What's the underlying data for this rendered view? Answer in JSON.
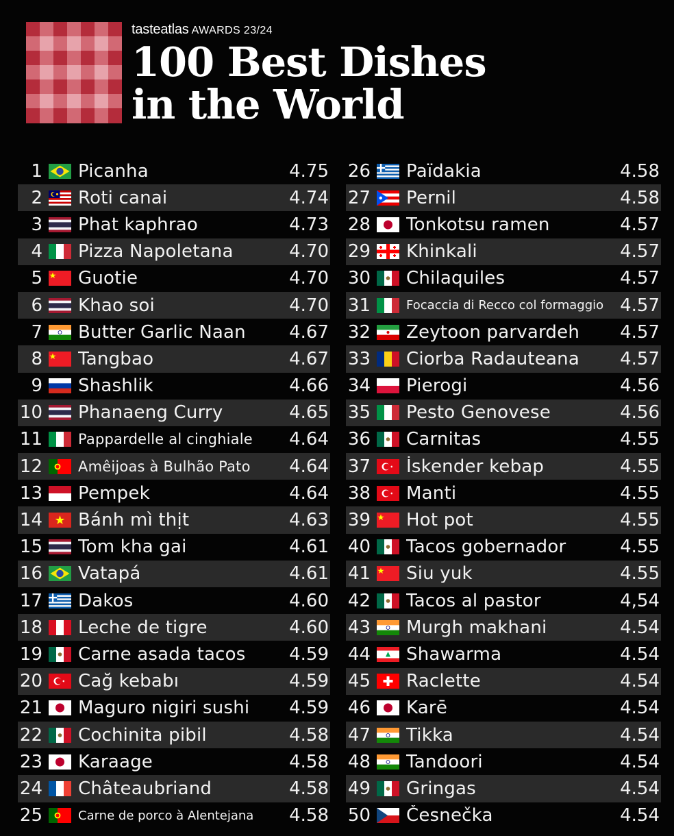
{
  "header": {
    "brand": "tasteatlas",
    "awards": "AWARDS 23/24",
    "title_line1": "100 Best Dishes",
    "title_line2": "in the World"
  },
  "dishes": [
    {
      "rank": "1",
      "flag": "brazil-flag",
      "name": "Picanha",
      "rating": "4.75"
    },
    {
      "rank": "2",
      "flag": "malaysia-flag",
      "name": "Roti canai",
      "rating": "4.74"
    },
    {
      "rank": "3",
      "flag": "thailand-flag",
      "name": "Phat kaphrao",
      "rating": "4.73"
    },
    {
      "rank": "4",
      "flag": "italy-flag",
      "name": "Pizza Napoletana",
      "rating": "4.70"
    },
    {
      "rank": "5",
      "flag": "china-flag",
      "name": "Guotie",
      "rating": "4.70"
    },
    {
      "rank": "6",
      "flag": "thailand-flag",
      "name": "Khao soi",
      "rating": "4.70"
    },
    {
      "rank": "7",
      "flag": "india-flag",
      "name": "Butter Garlic Naan",
      "rating": "4.67"
    },
    {
      "rank": "8",
      "flag": "china-flag",
      "name": "Tangbao",
      "rating": "4.67"
    },
    {
      "rank": "9",
      "flag": "russia-flag",
      "name": "Shashlik",
      "rating": "4.66"
    },
    {
      "rank": "10",
      "flag": "thailand-flag",
      "name": "Phanaeng Curry",
      "rating": "4.65"
    },
    {
      "rank": "11",
      "flag": "italy-flag",
      "name": "Pappardelle al cinghiale",
      "rating": "4.64"
    },
    {
      "rank": "12",
      "flag": "portugal-flag",
      "name": "Amêijoas à Bulhão Pato",
      "rating": "4.64"
    },
    {
      "rank": "13",
      "flag": "indonesia-flag",
      "name": "Pempek",
      "rating": "4.64"
    },
    {
      "rank": "14",
      "flag": "vietnam-flag",
      "name": "Bánh mì thịt",
      "rating": "4.63"
    },
    {
      "rank": "15",
      "flag": "thailand-flag",
      "name": "Tom kha gai",
      "rating": "4.61"
    },
    {
      "rank": "16",
      "flag": "brazil-flag",
      "name": "Vatapá",
      "rating": "4.61"
    },
    {
      "rank": "17",
      "flag": "greece-flag",
      "name": "Dakos",
      "rating": "4.60"
    },
    {
      "rank": "18",
      "flag": "peru-flag",
      "name": "Leche de tigre",
      "rating": "4.60"
    },
    {
      "rank": "19",
      "flag": "mexico-flag",
      "name": "Carne asada tacos",
      "rating": "4.59"
    },
    {
      "rank": "20",
      "flag": "turkey-flag",
      "name": "Cağ kebabı",
      "rating": "4.59"
    },
    {
      "rank": "21",
      "flag": "japan-flag",
      "name": "Maguro nigiri sushi",
      "rating": "4.59"
    },
    {
      "rank": "22",
      "flag": "mexico-flag",
      "name": "Cochinita pibil",
      "rating": "4.58"
    },
    {
      "rank": "23",
      "flag": "japan-flag",
      "name": "Karaage",
      "rating": "4.58"
    },
    {
      "rank": "24",
      "flag": "france-flag",
      "name": "Châteaubriand",
      "rating": "4.58"
    },
    {
      "rank": "25",
      "flag": "portugal-flag",
      "name": "Carne de porco à Alentejana",
      "rating": "4.58"
    },
    {
      "rank": "26",
      "flag": "greece-flag",
      "name": "Païdakia",
      "rating": "4.58"
    },
    {
      "rank": "27",
      "flag": "puerto-rico-flag",
      "name": "Pernil",
      "rating": "4.58"
    },
    {
      "rank": "28",
      "flag": "japan-flag",
      "name": "Tonkotsu ramen",
      "rating": "4.57"
    },
    {
      "rank": "29",
      "flag": "georgia-flag",
      "name": "Khinkali",
      "rating": "4.57"
    },
    {
      "rank": "30",
      "flag": "mexico-flag",
      "name": "Chilaquiles",
      "rating": "4.57"
    },
    {
      "rank": "31",
      "flag": "italy-flag",
      "name": "Focaccia di Recco col formaggio",
      "rating": "4.57"
    },
    {
      "rank": "32",
      "flag": "iran-flag",
      "name": "Zeytoon parvardeh",
      "rating": "4.57"
    },
    {
      "rank": "33",
      "flag": "romania-flag",
      "name": "Ciorba Radauteana",
      "rating": "4.57"
    },
    {
      "rank": "34",
      "flag": "poland-flag",
      "name": "Pierogi",
      "rating": "4.56"
    },
    {
      "rank": "35",
      "flag": "italy-flag",
      "name": "Pesto Genovese",
      "rating": "4.56"
    },
    {
      "rank": "36",
      "flag": "mexico-flag",
      "name": "Carnitas",
      "rating": "4.55"
    },
    {
      "rank": "37",
      "flag": "turkey-flag",
      "name": "İskender kebap",
      "rating": "4.55"
    },
    {
      "rank": "38",
      "flag": "turkey-flag",
      "name": "Manti",
      "rating": "4.55"
    },
    {
      "rank": "39",
      "flag": "china-flag",
      "name": "Hot pot",
      "rating": "4.55"
    },
    {
      "rank": "40",
      "flag": "mexico-flag",
      "name": "Tacos gobernador",
      "rating": "4.55"
    },
    {
      "rank": "41",
      "flag": "china-flag",
      "name": "Siu yuk",
      "rating": "4.55"
    },
    {
      "rank": "42",
      "flag": "mexico-flag",
      "name": "Tacos al pastor",
      "rating": "4,54"
    },
    {
      "rank": "43",
      "flag": "india-flag",
      "name": "Murgh makhani",
      "rating": "4.54"
    },
    {
      "rank": "44",
      "flag": "lebanon-flag",
      "name": "Shawarma",
      "rating": "4.54"
    },
    {
      "rank": "45",
      "flag": "switzerland-flag",
      "name": "Raclette",
      "rating": "4.54"
    },
    {
      "rank": "46",
      "flag": "japan-flag",
      "name": "Karē",
      "rating": "4.54"
    },
    {
      "rank": "47",
      "flag": "india-flag",
      "name": "Tikka",
      "rating": "4.54"
    },
    {
      "rank": "48",
      "flag": "india-flag",
      "name": "Tandoori",
      "rating": "4.54"
    },
    {
      "rank": "49",
      "flag": "mexico-flag",
      "name": "Gringas",
      "rating": "4.54"
    },
    {
      "rank": "50",
      "flag": "czech-flag",
      "name": "Česnečka",
      "rating": "4.54"
    }
  ]
}
